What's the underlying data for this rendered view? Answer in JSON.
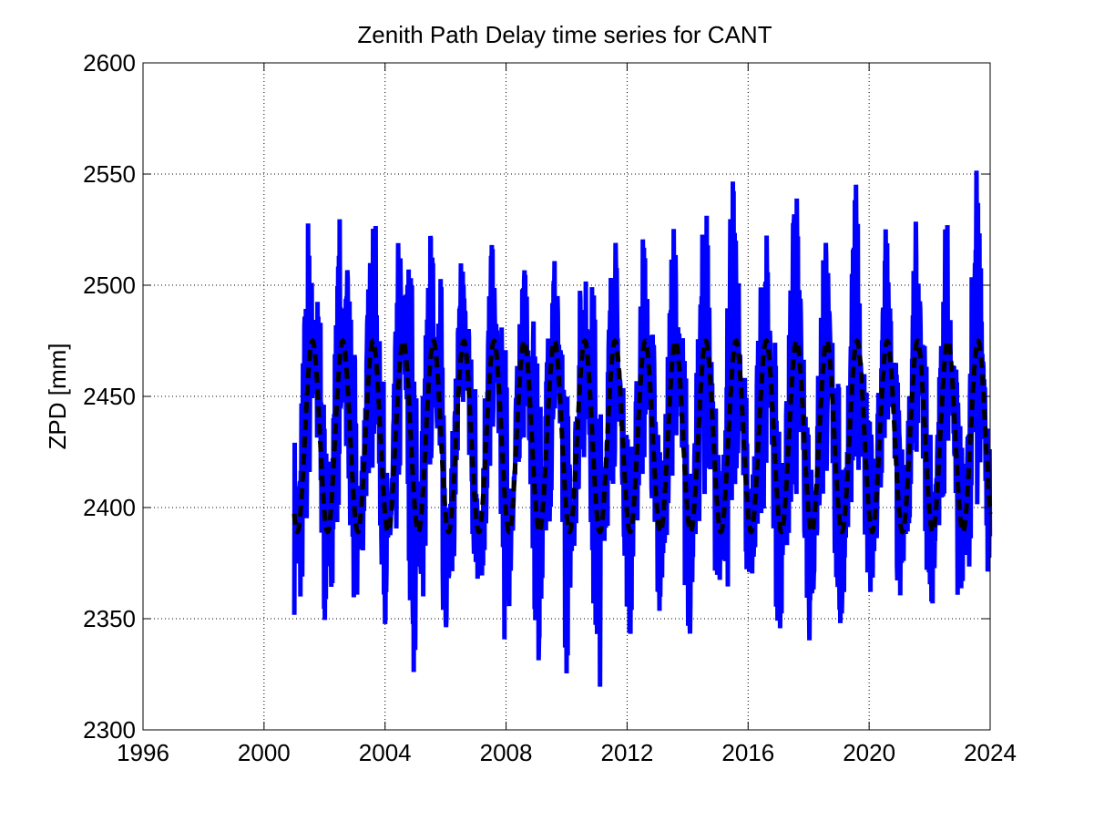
{
  "chart_data": {
    "type": "line",
    "title": "Zenith Path Delay time series for CANT",
    "xlabel": "",
    "ylabel": "ZPD [mm]",
    "xlim": [
      1996,
      2024
    ],
    "ylim": [
      2300,
      2600
    ],
    "xticks": [
      1996,
      2000,
      2004,
      2008,
      2012,
      2016,
      2020,
      2024
    ],
    "yticks": [
      2300,
      2350,
      2400,
      2450,
      2500,
      2550,
      2600
    ],
    "grid": true,
    "legend": "none",
    "colors": {
      "observed": "#0000ff",
      "model": "#000000"
    },
    "series": [
      {
        "style": "solid",
        "color": "#0000ff",
        "x_start": 2001.0,
        "x_end": 2024.0,
        "note_values": "per-year (x, y) envelope samples of the observed ZPD",
        "x": [
          2001.0,
          2001.2,
          2001.45,
          2001.6,
          2001.85,
          2002.0,
          2002.25,
          2002.5,
          2002.65,
          2002.85,
          2003.0,
          2003.3,
          2003.55,
          2003.7,
          2003.85,
          2004.0,
          2004.25,
          2004.45,
          2004.65,
          2004.85,
          2005.0,
          2005.2,
          2005.5,
          2005.65,
          2005.85,
          2006.0,
          2006.3,
          2006.55,
          2006.7,
          2006.85,
          2007.0,
          2007.3,
          2007.5,
          2007.7,
          2007.9,
          2008.0,
          2008.3,
          2008.55,
          2008.7,
          2008.95,
          2009.1,
          2009.3,
          2009.5,
          2009.7,
          2009.9,
          2010.0,
          2010.3,
          2010.55,
          2010.7,
          2010.9,
          2011.1,
          2011.3,
          2011.55,
          2011.7,
          2011.95,
          2012.1,
          2012.3,
          2012.55,
          2012.7,
          2012.9,
          2013.1,
          2013.3,
          2013.55,
          2013.7,
          2013.9,
          2014.1,
          2014.3,
          2014.55,
          2014.7,
          2014.9,
          2015.1,
          2015.3,
          2015.5,
          2015.7,
          2015.9,
          2016.0,
          2016.3,
          2016.55,
          2016.7,
          2016.9,
          2017.1,
          2017.3,
          2017.55,
          2017.7,
          2017.9,
          2018.1,
          2018.3,
          2018.55,
          2018.7,
          2018.9,
          2019.1,
          2019.3,
          2019.55,
          2019.7,
          2019.9,
          2020.1,
          2020.3,
          2020.55,
          2020.7,
          2020.9,
          2021.1,
          2021.3,
          2021.55,
          2021.7,
          2021.9,
          2022.1,
          2022.3,
          2022.55,
          2022.7,
          2022.9,
          2023.1,
          2023.3,
          2023.55,
          2023.7,
          2023.9,
          2024.0
        ],
        "y": [
          2360,
          2430,
          2535,
          2490,
          2375,
          2345,
          2440,
          2528,
          2470,
          2360,
          2330,
          2445,
          2527,
          2520,
          2380,
          2355,
          2420,
          2530,
          2470,
          2345,
          2318,
          2440,
          2522,
          2490,
          2360,
          2340,
          2450,
          2515,
          2470,
          2370,
          2345,
          2455,
          2520,
          2475,
          2360,
          2325,
          2430,
          2520,
          2480,
          2330,
          2320,
          2440,
          2540,
          2495,
          2360,
          2325,
          2440,
          2530,
          2470,
          2330,
          2322,
          2450,
          2535,
          2490,
          2370,
          2335,
          2445,
          2535,
          2470,
          2360,
          2345,
          2445,
          2535,
          2480,
          2360,
          2345,
          2455,
          2540,
          2545,
          2380,
          2370,
          2480,
          2565,
          2500,
          2380,
          2365,
          2460,
          2545,
          2480,
          2360,
          2350,
          2455,
          2555,
          2505,
          2370,
          2330,
          2450,
          2555,
          2470,
          2360,
          2330,
          2450,
          2545,
          2510,
          2360,
          2350,
          2455,
          2530,
          2490,
          2370,
          2350,
          2440,
          2525,
          2475,
          2370,
          2355,
          2445,
          2540,
          2480,
          2365,
          2350,
          2460,
          2565,
          2505,
          2380,
          2375
        ]
      },
      {
        "style": "dashed",
        "color": "#000000",
        "model": "sinusoid",
        "mean": 2432,
        "amplitude": 43,
        "period_years": 1.0,
        "phase_peak_fraction": 0.6,
        "x_start": 2001.0,
        "x_end": 2024.0,
        "y_range": [
          2389,
          2475
        ]
      }
    ]
  }
}
